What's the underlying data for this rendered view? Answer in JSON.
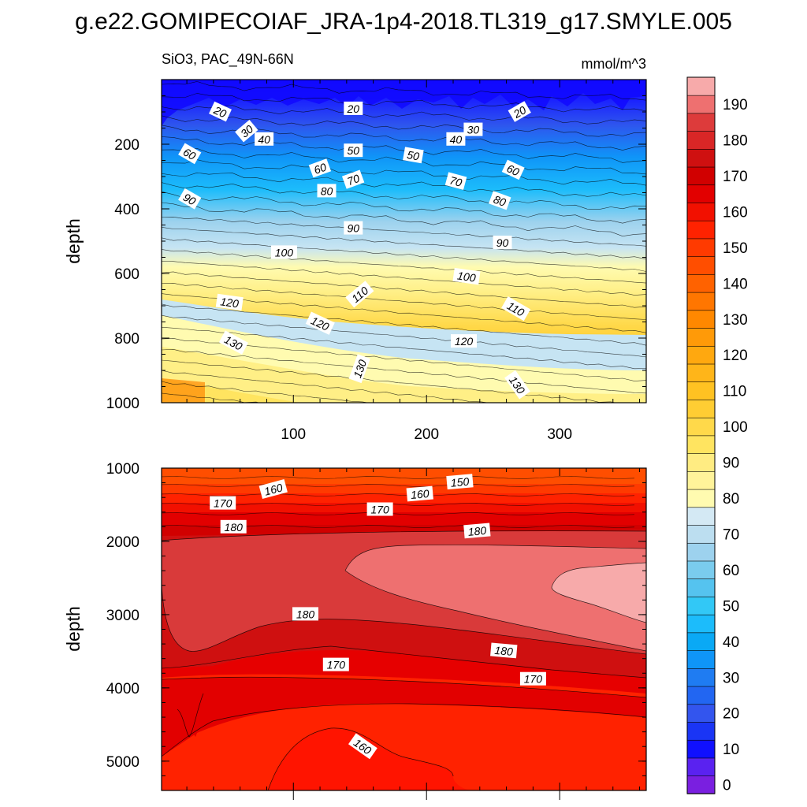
{
  "chart_data": {
    "title": "g.e22.GOMIPECOIAF_JRA-1p4-2018.TL319_g17.SMYLE.005",
    "type": "heatmap",
    "variable_label": "SiO3, PAC_49N-66N",
    "units": "mmol/m^3",
    "x_axis": {
      "range": [
        1,
        365
      ],
      "ticks": [
        "100",
        "200",
        "300"
      ]
    },
    "panels": [
      {
        "name": "upper-ocean",
        "ylabel": "depth",
        "ylim": [
          0,
          1000
        ],
        "y_ticks": [
          "200",
          "400",
          "600",
          "800",
          "1000"
        ],
        "contour_labels": [
          {
            "text": "20",
            "x": 45,
            "y": 100,
            "rot": 25
          },
          {
            "text": "20",
            "x": 145,
            "y": 90,
            "rot": 0
          },
          {
            "text": "20",
            "x": 270,
            "y": 100,
            "rot": -30
          },
          {
            "text": "30",
            "x": 65,
            "y": 160,
            "rot": -40
          },
          {
            "text": "30",
            "x": 235,
            "y": 155,
            "rot": 0
          },
          {
            "text": "40",
            "x": 78,
            "y": 185,
            "rot": 0
          },
          {
            "text": "40",
            "x": 222,
            "y": 185,
            "rot": 0
          },
          {
            "text": "50",
            "x": 145,
            "y": 220,
            "rot": 0
          },
          {
            "text": "50",
            "x": 190,
            "y": 235,
            "rot": 10
          },
          {
            "text": "60",
            "x": 22,
            "y": 230,
            "rot": 30
          },
          {
            "text": "60",
            "x": 120,
            "y": 275,
            "rot": -20
          },
          {
            "text": "60",
            "x": 265,
            "y": 280,
            "rot": 25
          },
          {
            "text": "70",
            "x": 145,
            "y": 310,
            "rot": -20
          },
          {
            "text": "70",
            "x": 222,
            "y": 315,
            "rot": 15
          },
          {
            "text": "80",
            "x": 125,
            "y": 345,
            "rot": 0
          },
          {
            "text": "80",
            "x": 255,
            "y": 375,
            "rot": 20
          },
          {
            "text": "90",
            "x": 22,
            "y": 370,
            "rot": 30
          },
          {
            "text": "90",
            "x": 145,
            "y": 460,
            "rot": 0
          },
          {
            "text": "90",
            "x": 257,
            "y": 505,
            "rot": 0
          },
          {
            "text": "100",
            "x": 93,
            "y": 535,
            "rot": 0
          },
          {
            "text": "100",
            "x": 230,
            "y": 610,
            "rot": 8
          },
          {
            "text": "110",
            "x": 150,
            "y": 665,
            "rot": -40
          },
          {
            "text": "110",
            "x": 267,
            "y": 710,
            "rot": 30
          },
          {
            "text": "120",
            "x": 52,
            "y": 690,
            "rot": 8
          },
          {
            "text": "120",
            "x": 120,
            "y": 755,
            "rot": 25
          },
          {
            "text": "120",
            "x": 228,
            "y": 810,
            "rot": 0
          },
          {
            "text": "130",
            "x": 55,
            "y": 815,
            "rot": 28
          },
          {
            "text": "130",
            "x": 150,
            "y": 895,
            "rot": -70
          },
          {
            "text": "130",
            "x": 268,
            "y": 945,
            "rot": 55
          }
        ]
      },
      {
        "name": "deep-ocean",
        "ylabel": "depth",
        "ylim": [
          1000,
          5400
        ],
        "y_ticks": [
          "1000",
          "2000",
          "3000",
          "4000",
          "5000"
        ],
        "contour_labels": [
          {
            "text": "150",
            "x": 225,
            "y": 1190,
            "rot": -5
          },
          {
            "text": "160",
            "x": 85,
            "y": 1290,
            "rot": -15
          },
          {
            "text": "160",
            "x": 195,
            "y": 1355,
            "rot": -5
          },
          {
            "text": "160",
            "x": 152,
            "y": 4800,
            "rot": 35
          },
          {
            "text": "170",
            "x": 47,
            "y": 1480,
            "rot": 0
          },
          {
            "text": "170",
            "x": 165,
            "y": 1565,
            "rot": 0
          },
          {
            "text": "170",
            "x": 132,
            "y": 3685,
            "rot": 0
          },
          {
            "text": "170",
            "x": 280,
            "y": 3880,
            "rot": 0
          },
          {
            "text": "180",
            "x": 55,
            "y": 1805,
            "rot": 0
          },
          {
            "text": "180",
            "x": 238,
            "y": 1860,
            "rot": -5
          },
          {
            "text": "180",
            "x": 109,
            "y": 2995,
            "rot": 0
          },
          {
            "text": "180",
            "x": 258,
            "y": 3495,
            "rot": 5
          }
        ]
      }
    ],
    "colorbar": {
      "levels": [
        "0",
        "10",
        "20",
        "30",
        "40",
        "50",
        "60",
        "70",
        "80",
        "90",
        "100",
        "110",
        "120",
        "130",
        "140",
        "150",
        "160",
        "170",
        "180",
        "190"
      ],
      "colors": [
        "#7a1fe0",
        "#5a22f0",
        "#1010ff",
        "#1a35f5",
        "#3355ee",
        "#2266f2",
        "#1f7cf2",
        "#0f95f8",
        "#0aa9f5",
        "#1cbcfb",
        "#32c8f6",
        "#55c3ef",
        "#7accee",
        "#9dd2ee",
        "#bcdef0",
        "#d4e9f4",
        "#fffbb0",
        "#fff39a",
        "#ffec82",
        "#ffe460",
        "#ffd94a",
        "#ffcd33",
        "#ffc222",
        "#ffb519",
        "#ffa80f",
        "#ff9a08",
        "#ff8800",
        "#ff7600",
        "#ff6200",
        "#ff4e00",
        "#ff3a00",
        "#ff2200",
        "#f21000",
        "#e20000",
        "#d10000",
        "#cf1010",
        "#d92626",
        "#dd3b3b",
        "#ee7070",
        "#f7aaaa"
      ]
    }
  }
}
